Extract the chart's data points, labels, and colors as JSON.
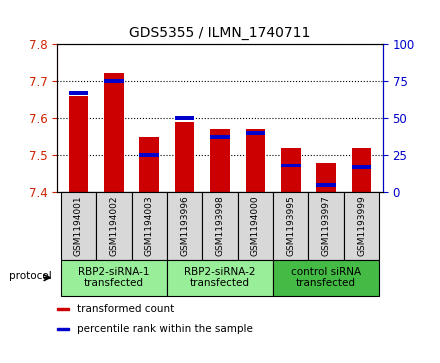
{
  "title": "GDS5355 / ILMN_1740711",
  "samples": [
    "GSM1194001",
    "GSM1194002",
    "GSM1194003",
    "GSM1193996",
    "GSM1193998",
    "GSM1194000",
    "GSM1193995",
    "GSM1193997",
    "GSM1193999"
  ],
  "red_values": [
    7.66,
    7.72,
    7.55,
    7.59,
    7.57,
    7.57,
    7.52,
    7.48,
    7.52
  ],
  "blue_values": [
    67,
    75,
    25,
    50,
    37,
    40,
    18,
    5,
    17
  ],
  "ylim_left": [
    7.4,
    7.8
  ],
  "ylim_right": [
    0,
    100
  ],
  "yticks_left": [
    7.4,
    7.5,
    7.6,
    7.7,
    7.8
  ],
  "yticks_right": [
    0,
    25,
    50,
    75,
    100
  ],
  "bar_width": 0.55,
  "red_color": "#cc0000",
  "blue_color": "#0000cc",
  "group_boundaries": [
    {
      "start": 0,
      "end": 2,
      "label": "RBP2-siRNA-1\ntransfected",
      "color": "#99ee99"
    },
    {
      "start": 3,
      "end": 5,
      "label": "RBP2-siRNA-2\ntransfected",
      "color": "#99ee99"
    },
    {
      "start": 6,
      "end": 8,
      "label": "control siRNA\ntransfected",
      "color": "#44bb44"
    }
  ],
  "protocol_label": "protocol",
  "legend_items": [
    {
      "color": "#cc0000",
      "label": "transformed count"
    },
    {
      "color": "#0000cc",
      "label": "percentile rank within the sample"
    }
  ],
  "background_color": "#ffffff",
  "plot_bg": "#ffffff",
  "tick_label_color_left": "#cc2200",
  "tick_label_color_right": "#0000cc",
  "sample_box_color": "#d8d8d8"
}
